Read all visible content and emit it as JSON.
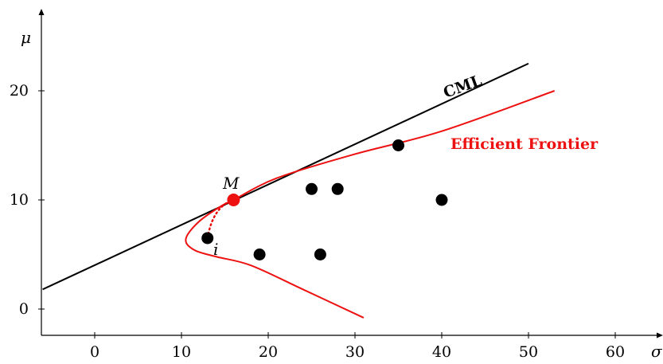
{
  "chart_data": {
    "type": "scatter",
    "xlabel": "σ",
    "ylabel": "μ",
    "xlim": [
      -6,
      65
    ],
    "ylim": [
      -3,
      27
    ],
    "x_ticks": [
      "0",
      "10",
      "20",
      "30",
      "40",
      "50",
      "60"
    ],
    "y_ticks": [
      "0",
      "10",
      "20"
    ],
    "assets": [
      {
        "x": 13,
        "y": 6.5
      },
      {
        "x": 19,
        "y": 5
      },
      {
        "x": 25,
        "y": 11
      },
      {
        "x": 26,
        "y": 5
      },
      {
        "x": 28,
        "y": 11
      },
      {
        "x": 35,
        "y": 15
      },
      {
        "x": 40,
        "y": 10
      }
    ],
    "market_portfolio": {
      "x": 16,
      "y": 10,
      "label": "M"
    },
    "asset_i_label": "i",
    "cml": {
      "label": "CML",
      "x_start": -6,
      "y_start": 1.8,
      "x_end": 50,
      "y_end": 22.5
    },
    "efficient_frontier": {
      "label": "Efficient Frontier",
      "points": [
        [
          31,
          -0.8
        ],
        [
          24,
          1.8
        ],
        [
          18,
          4.0
        ],
        [
          14,
          4.8
        ],
        [
          11.5,
          5.4
        ],
        [
          10.5,
          6.4
        ],
        [
          12,
          8.0
        ],
        [
          14.5,
          9.4
        ],
        [
          16,
          10
        ],
        [
          21,
          12
        ],
        [
          30,
          14.2
        ],
        [
          40,
          16.3
        ],
        [
          53,
          20
        ]
      ]
    },
    "colors": {
      "cml": "#000000",
      "frontier": "#ee1111",
      "market_portfolio": "#ee1111",
      "assets": "#000000"
    }
  }
}
